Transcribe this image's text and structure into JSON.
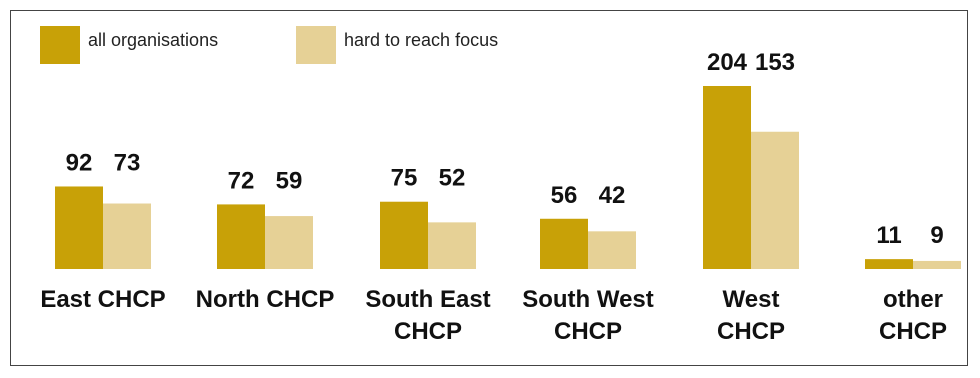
{
  "chart_data": {
    "type": "bar",
    "categories": [
      [
        "East CHCP"
      ],
      [
        "North CHCP"
      ],
      [
        "South East",
        "CHCP"
      ],
      [
        "South West",
        "CHCP"
      ],
      [
        "West",
        "CHCP"
      ],
      [
        "other",
        "CHCP"
      ]
    ],
    "series": [
      {
        "name": "all organisations",
        "color": "#C8A107",
        "values": [
          92,
          72,
          75,
          56,
          204,
          11
        ]
      },
      {
        "name": "hard to reach focus",
        "color": "#E6D196",
        "values": [
          73,
          59,
          52,
          42,
          153,
          9
        ]
      }
    ],
    "legend": "top-left",
    "ylim": [
      0,
      204
    ],
    "grid": false
  }
}
